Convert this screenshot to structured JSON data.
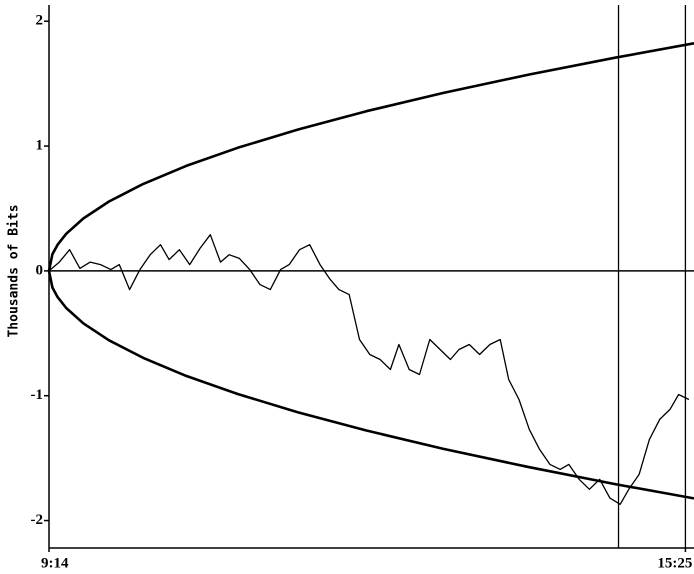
{
  "chart_data": {
    "type": "line",
    "y_label": "Thousands of Bits",
    "xlim": [
      554,
      930
    ],
    "ylim": [
      -2.22,
      2.13
    ],
    "xticks": [
      {
        "value": 554,
        "label": "9:14"
      },
      {
        "value": 925,
        "label": "15:25"
      }
    ],
    "yticks": [
      -2,
      -1,
      0,
      1,
      2
    ],
    "vlines": [
      886,
      925
    ],
    "series": [
      {
        "color": "#000000",
        "width": 1.3,
        "x": [
          554,
          560,
          566,
          572,
          578,
          584,
          590,
          595,
          601,
          607,
          613,
          619,
          624,
          630,
          636,
          642,
          648,
          654,
          659,
          665,
          671,
          677,
          683,
          689,
          694,
          700,
          706,
          712,
          718,
          723,
          729,
          735,
          741,
          747,
          753,
          758,
          764,
          770,
          776,
          782,
          788,
          793,
          799,
          805,
          811,
          817,
          822,
          828,
          834,
          840,
          846,
          852,
          857,
          863,
          869,
          875,
          881,
          887,
          892,
          898,
          904,
          910,
          916,
          921,
          927
        ],
        "values": [
          0,
          0.07,
          0.17,
          0.02,
          0.07,
          0.05,
          0.01,
          0.05,
          -0.15,
          0.01,
          0.13,
          0.21,
          0.09,
          0.17,
          0.05,
          0.18,
          0.29,
          0.07,
          0.13,
          0.1,
          0.01,
          -0.11,
          -0.15,
          0.01,
          0.05,
          0.17,
          0.21,
          0.05,
          -0.07,
          -0.15,
          -0.19,
          -0.55,
          -0.67,
          -0.71,
          -0.79,
          -0.59,
          -0.79,
          -0.83,
          -0.55,
          -0.63,
          -0.71,
          -0.63,
          -0.59,
          -0.67,
          -0.59,
          -0.55,
          -0.87,
          -1.03,
          -1.27,
          -1.43,
          -1.55,
          -1.59,
          -1.55,
          -1.67,
          -1.75,
          -1.67,
          -1.82,
          -1.87,
          -1.75,
          -1.63,
          -1.35,
          -1.19,
          -1.11,
          -0.99,
          -1.03
        ]
      },
      {
        "color": "#000000",
        "width": 2.6,
        "x": [
          554,
          556,
          559,
          564,
          574,
          589,
          609,
          634,
          664,
          699,
          739,
          784,
          834,
          884,
          930
        ],
        "values": [
          0,
          0.133,
          0.21,
          0.297,
          0.42,
          0.556,
          0.697,
          0.841,
          0.986,
          1.132,
          1.279,
          1.426,
          1.573,
          1.708,
          1.823
        ]
      },
      {
        "color": "#000000",
        "width": 2.6,
        "x": [
          554,
          556,
          559,
          564,
          574,
          589,
          609,
          634,
          664,
          699,
          739,
          784,
          834,
          884,
          930
        ],
        "values": [
          0,
          -0.133,
          -0.21,
          -0.297,
          -0.42,
          -0.556,
          -0.697,
          -0.841,
          -0.986,
          -1.132,
          -1.279,
          -1.426,
          -1.573,
          -1.708,
          -1.823
        ]
      }
    ]
  }
}
